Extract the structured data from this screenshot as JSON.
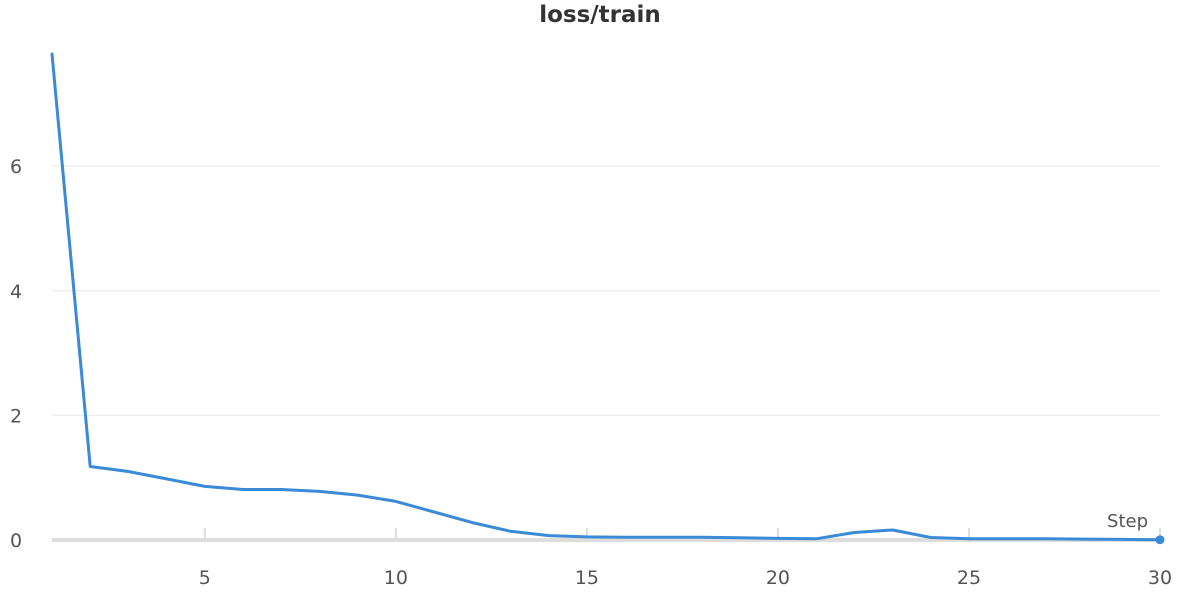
{
  "chart_data": {
    "type": "line",
    "title": "loss/train",
    "xlabel": "Step",
    "ylabel": "",
    "xlim": [
      1,
      30
    ],
    "ylim": [
      0,
      7.8
    ],
    "x_ticks": [
      5,
      10,
      15,
      20,
      25,
      30
    ],
    "y_ticks": [
      0,
      2,
      4,
      6
    ],
    "grid": true,
    "line_color": "#3a8ad6",
    "series": [
      {
        "x": [
          1,
          2,
          3,
          4,
          5,
          6,
          7,
          8,
          9,
          10,
          11,
          12,
          13,
          14,
          15,
          16,
          17,
          18,
          19,
          20,
          21,
          22,
          23,
          24,
          25,
          26,
          27,
          28,
          29,
          30
        ],
        "values": [
          7.8,
          1.18,
          1.1,
          0.98,
          0.86,
          0.81,
          0.81,
          0.78,
          0.72,
          0.62,
          0.45,
          0.28,
          0.14,
          0.07,
          0.05,
          0.045,
          0.045,
          0.045,
          0.035,
          0.025,
          0.02,
          0.12,
          0.16,
          0.04,
          0.02,
          0.02,
          0.02,
          0.015,
          0.01,
          0.005
        ]
      }
    ]
  }
}
